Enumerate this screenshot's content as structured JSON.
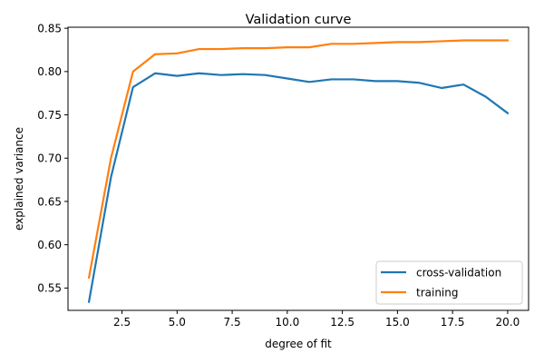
{
  "chart_data": {
    "type": "line",
    "title": "Validation curve",
    "xlabel": "degree of fit",
    "ylabel": "explained variance",
    "xlim": [
      0.05,
      20.95
    ],
    "ylim": [
      0.5242,
      0.8512
    ],
    "xticks": [
      2.5,
      5.0,
      7.5,
      10.0,
      12.5,
      15.0,
      17.5,
      20.0
    ],
    "xtick_labels": [
      "2.5",
      "5.0",
      "7.5",
      "10.0",
      "12.5",
      "15.0",
      "17.5",
      "20.0"
    ],
    "yticks": [
      0.55,
      0.6,
      0.65,
      0.7,
      0.75,
      0.8,
      0.85
    ],
    "ytick_labels": [
      "0.55",
      "0.60",
      "0.65",
      "0.70",
      "0.75",
      "0.80",
      "0.85"
    ],
    "grid": false,
    "legend_position": "lower-right",
    "x": [
      1,
      2,
      3,
      4,
      5,
      6,
      7,
      8,
      9,
      10,
      11,
      12,
      13,
      14,
      15,
      16,
      17,
      18,
      19,
      20
    ],
    "series": [
      {
        "name": "cross-validation",
        "color": "#1f77b4",
        "values": [
          0.534,
          0.678,
          0.782,
          0.798,
          0.795,
          0.798,
          0.796,
          0.797,
          0.796,
          0.792,
          0.788,
          0.791,
          0.791,
          0.789,
          0.789,
          0.787,
          0.781,
          0.785,
          0.771,
          0.752
        ]
      },
      {
        "name": "training",
        "color": "#ff7f0e",
        "values": [
          0.562,
          0.7,
          0.8,
          0.82,
          0.821,
          0.826,
          0.826,
          0.827,
          0.827,
          0.828,
          0.828,
          0.832,
          0.832,
          0.833,
          0.834,
          0.834,
          0.835,
          0.836,
          0.836,
          0.836
        ]
      }
    ]
  }
}
